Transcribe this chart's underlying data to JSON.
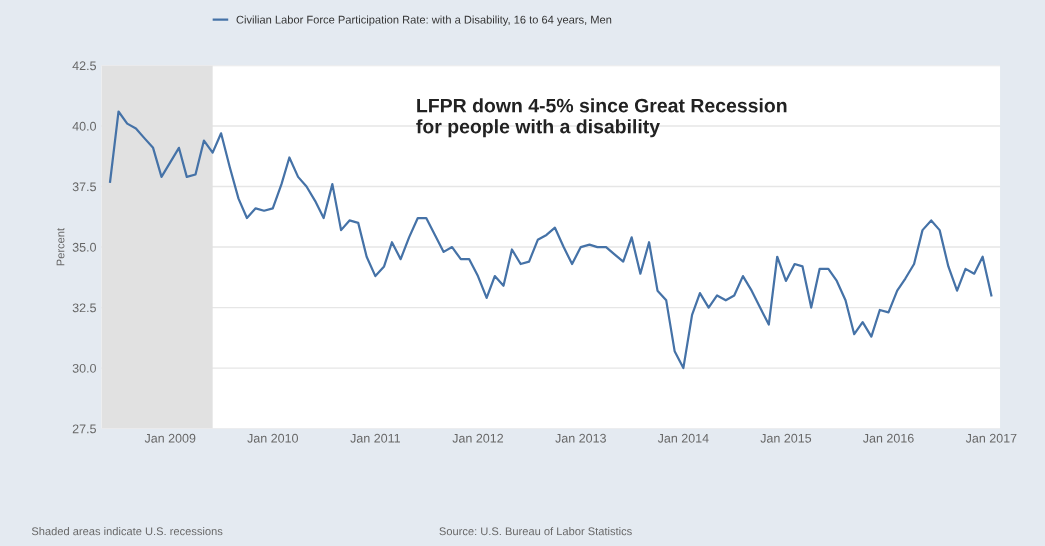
{
  "chart_data": {
    "type": "line",
    "ylabel": "Percent",
    "x": [
      "2008-06",
      "2008-07",
      "2008-08",
      "2008-09",
      "2008-10",
      "2008-11",
      "2008-12",
      "2009-01",
      "2009-02",
      "2009-03",
      "2009-04",
      "2009-05",
      "2009-06",
      "2009-07",
      "2009-08",
      "2009-09",
      "2009-10",
      "2009-11",
      "2009-12",
      "2010-01",
      "2010-02",
      "2010-03",
      "2010-04",
      "2010-05",
      "2010-06",
      "2010-07",
      "2010-08",
      "2010-09",
      "2010-10",
      "2010-11",
      "2010-12",
      "2011-01",
      "2011-02",
      "2011-03",
      "2011-04",
      "2011-05",
      "2011-06",
      "2011-07",
      "2011-08",
      "2011-09",
      "2011-10",
      "2011-11",
      "2011-12",
      "2012-01",
      "2012-02",
      "2012-03",
      "2012-04",
      "2012-05",
      "2012-06",
      "2012-07",
      "2012-08",
      "2012-09",
      "2012-10",
      "2012-11",
      "2012-12",
      "2013-01",
      "2013-02",
      "2013-03",
      "2013-04",
      "2013-05",
      "2013-06",
      "2013-07",
      "2013-08",
      "2013-09",
      "2013-10",
      "2013-11",
      "2013-12",
      "2014-01",
      "2014-02",
      "2014-03",
      "2014-04",
      "2014-05",
      "2014-06",
      "2014-07",
      "2014-08",
      "2014-09",
      "2014-10",
      "2014-11",
      "2014-12",
      "2015-01",
      "2015-02",
      "2015-03",
      "2015-04",
      "2015-05",
      "2015-06",
      "2015-07",
      "2015-08",
      "2015-09",
      "2015-10",
      "2015-11",
      "2015-12",
      "2016-01",
      "2016-02",
      "2016-03",
      "2016-04",
      "2016-05",
      "2016-06",
      "2016-07",
      "2016-08",
      "2016-09",
      "2016-10",
      "2016-11",
      "2016-12",
      "2017-01"
    ],
    "series": [
      {
        "name": "Civilian Labor Force Participation Rate: with a Disability, 16 to 64 years, Men",
        "color": "#4572a7",
        "values": [
          37.7,
          40.6,
          40.1,
          39.9,
          39.5,
          39.1,
          37.9,
          38.5,
          39.1,
          37.9,
          38.0,
          39.4,
          38.9,
          39.7,
          38.3,
          37.0,
          36.2,
          36.6,
          36.5,
          36.6,
          37.6,
          38.7,
          37.9,
          37.5,
          36.9,
          36.2,
          37.6,
          35.7,
          36.1,
          36.0,
          34.6,
          33.8,
          34.2,
          35.2,
          34.5,
          35.4,
          36.2,
          36.2,
          35.5,
          34.8,
          35.0,
          34.5,
          34.5,
          33.8,
          32.9,
          33.8,
          33.4,
          34.9,
          34.3,
          34.4,
          35.3,
          35.5,
          35.8,
          35.0,
          34.3,
          35.0,
          35.1,
          35.0,
          35.0,
          34.7,
          34.4,
          35.4,
          33.9,
          35.2,
          33.2,
          32.8,
          30.7,
          30.0,
          32.2,
          33.1,
          32.5,
          33.0,
          32.8,
          33.0,
          33.8,
          33.2,
          32.5,
          31.8,
          34.6,
          33.6,
          34.3,
          34.2,
          32.5,
          34.1,
          34.1,
          33.6,
          32.8,
          31.4,
          31.9,
          31.3,
          32.4,
          32.3,
          33.2,
          33.7,
          34.3,
          35.7,
          36.1,
          35.7,
          34.2,
          33.2,
          34.1,
          33.9,
          34.6,
          33.0
        ]
      }
    ],
    "xlim": [
      "2008-05-01",
      "2017-02-01"
    ],
    "xticks": [
      {
        "value": "2009-01-01",
        "label": "Jan 2009"
      },
      {
        "value": "2010-01-01",
        "label": "Jan 2010"
      },
      {
        "value": "2011-01-01",
        "label": "Jan 2011"
      },
      {
        "value": "2012-01-01",
        "label": "Jan 2012"
      },
      {
        "value": "2013-01-01",
        "label": "Jan 2013"
      },
      {
        "value": "2014-01-01",
        "label": "Jan 2014"
      },
      {
        "value": "2015-01-01",
        "label": "Jan 2015"
      },
      {
        "value": "2016-01-01",
        "label": "Jan 2016"
      },
      {
        "value": "2017-01-01",
        "label": "Jan 2017"
      }
    ],
    "ylim": [
      27.5,
      42.5
    ],
    "yticks": [
      {
        "value": 27.5,
        "label": "27.5"
      },
      {
        "value": 30,
        "label": "30.0"
      },
      {
        "value": 32.5,
        "label": "32.5"
      },
      {
        "value": 35,
        "label": "35.0"
      },
      {
        "value": 37.5,
        "label": "37.5"
      },
      {
        "value": 40,
        "label": "40.0"
      },
      {
        "value": 42.5,
        "label": "42.5"
      }
    ],
    "grid": "y",
    "legend": "top left",
    "marker": "none",
    "line_style": "solid",
    "bands": [
      {
        "axis": "x",
        "from": "2008-05-01",
        "to": "2009-06-01",
        "color": "#e1e1e1"
      }
    ],
    "annotations": [
      "LFPR down 4-5% since Great Recession\nfor people with a disability",
      "Shaded areas indicate U.S. recessions",
      "Source: U.S. Bureau of Labor Statistics"
    ]
  }
}
